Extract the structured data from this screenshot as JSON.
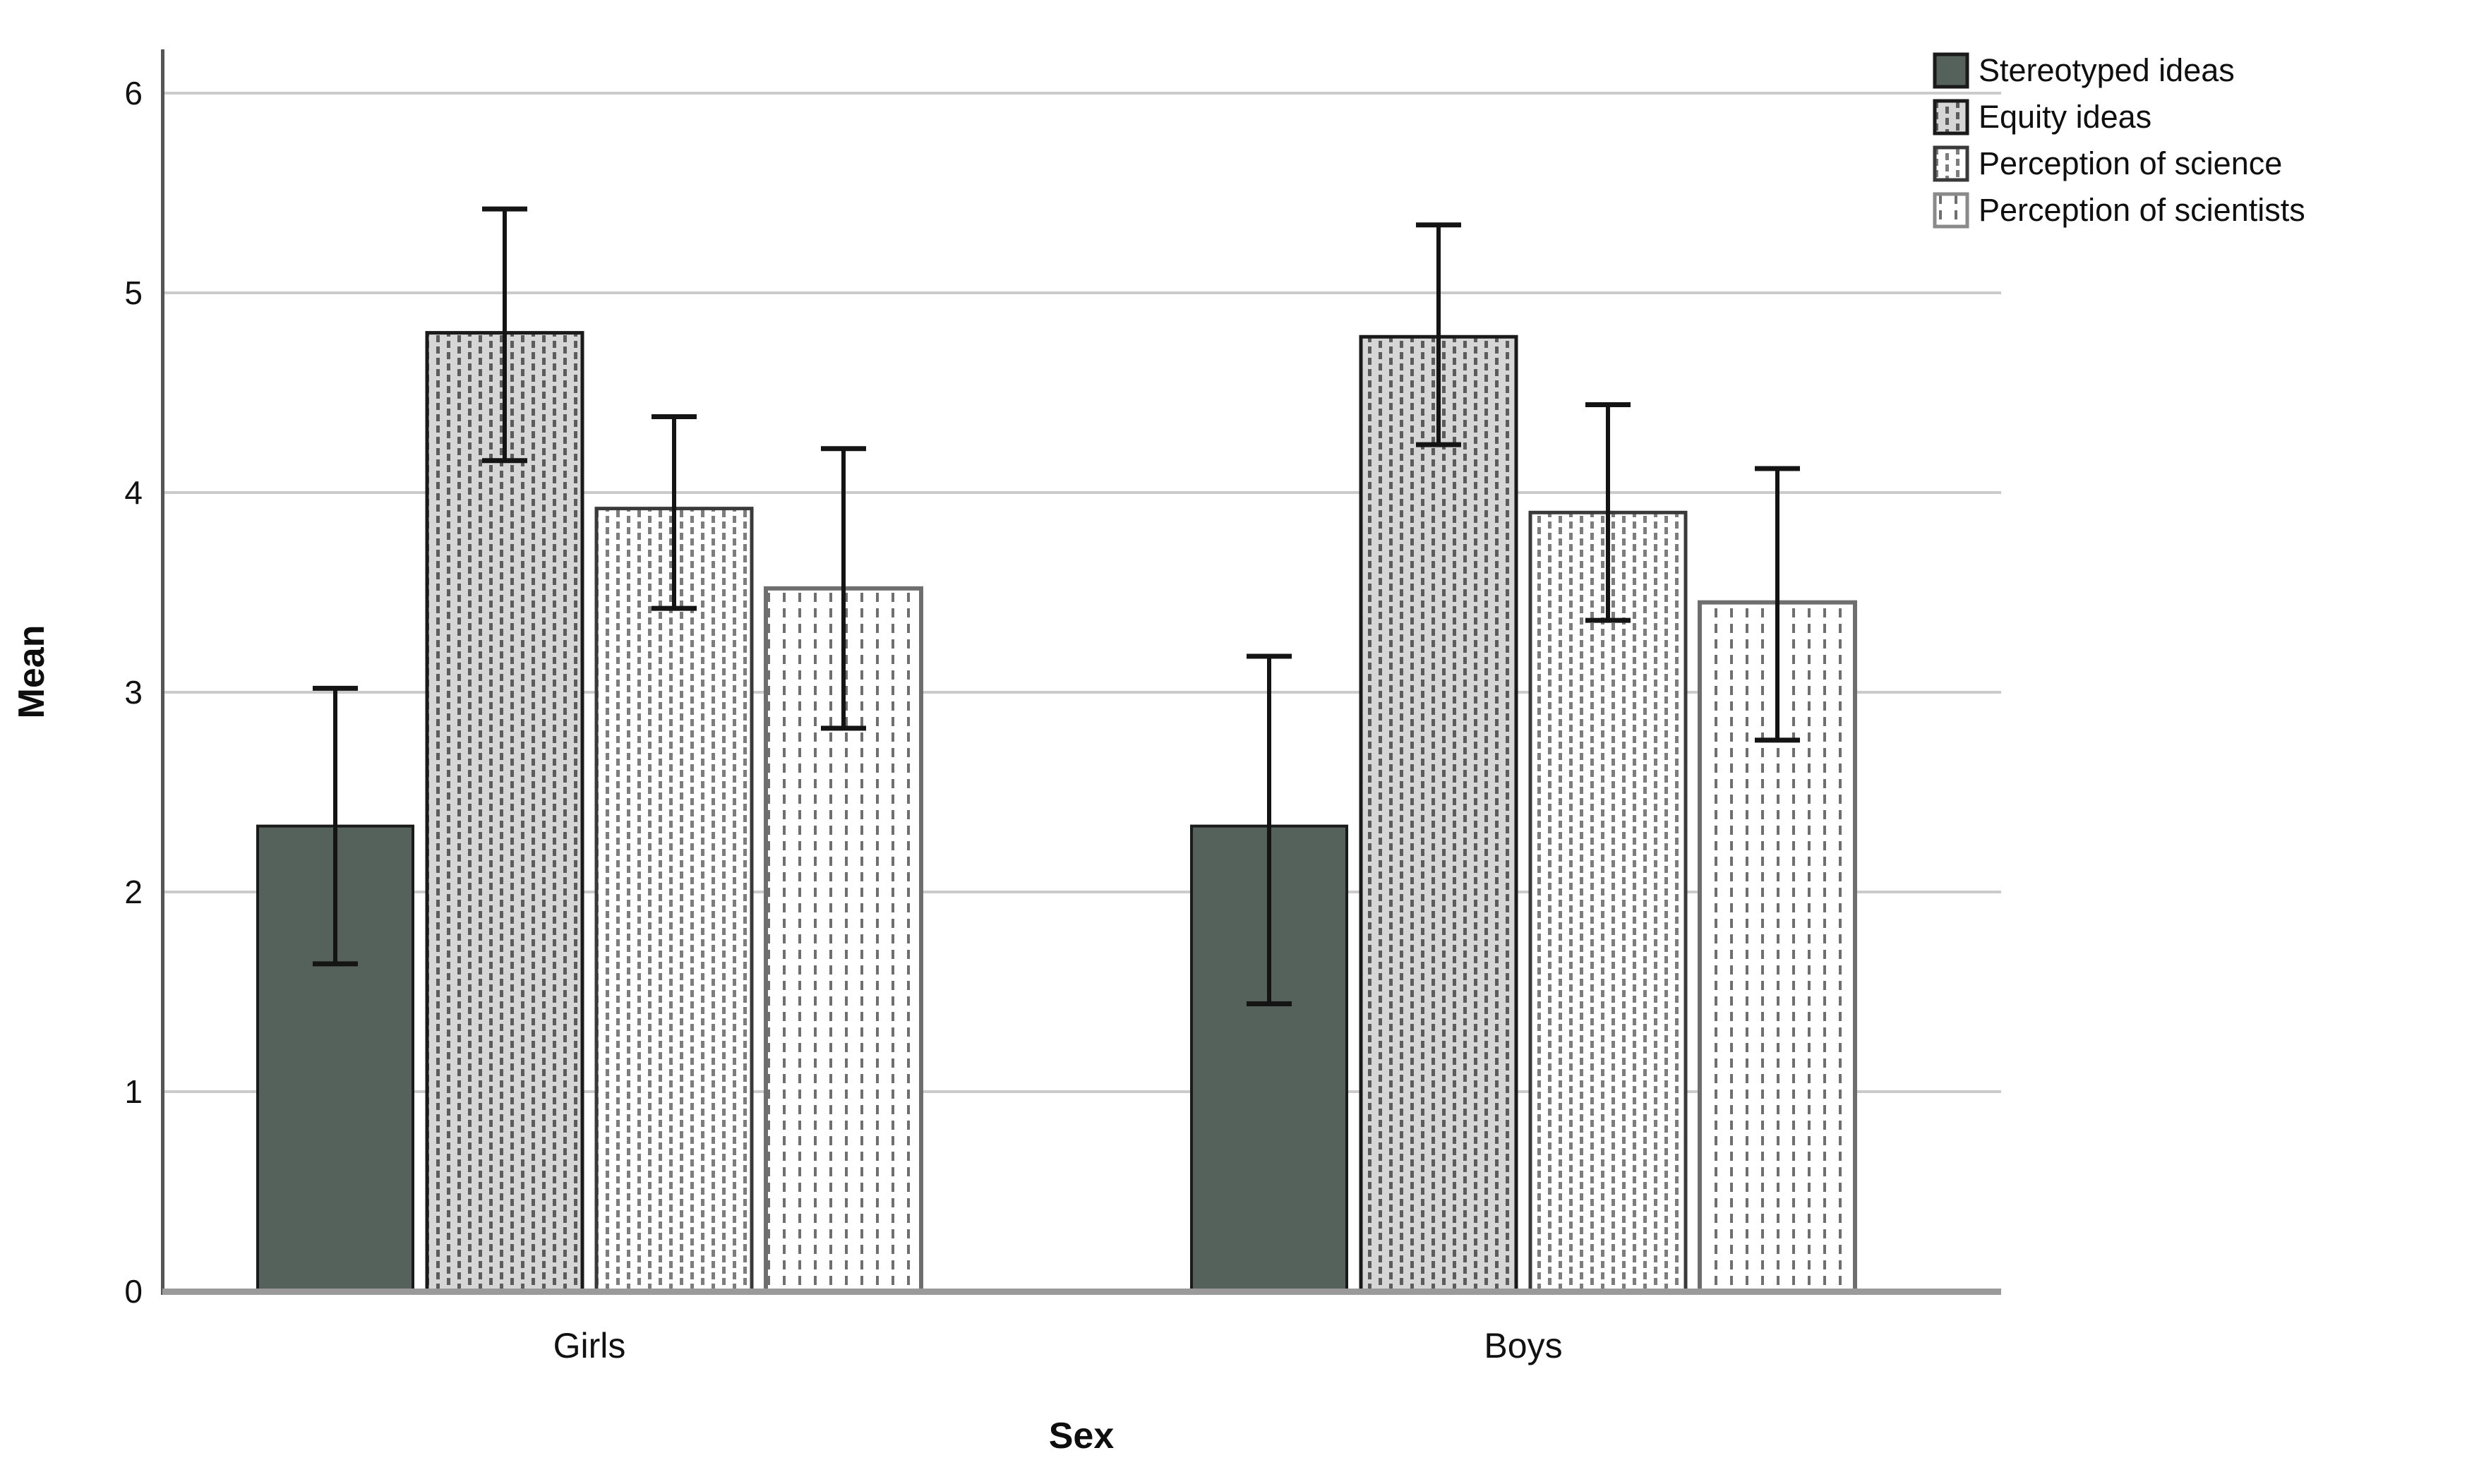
{
  "chart_data": {
    "type": "bar",
    "title": "",
    "xlabel": "Sex",
    "ylabel": "Mean",
    "categories": [
      "Girls",
      "Boys"
    ],
    "yticks": [
      0,
      1,
      2,
      3,
      4,
      5,
      6
    ],
    "ylim": [
      0,
      6.2
    ],
    "grid": true,
    "legend_position": "top-right",
    "error_bars": true,
    "series": [
      {
        "name": "Stereotyped ideas",
        "style": "solid-dark",
        "values": [
          2.33,
          2.33
        ],
        "err_low": [
          1.64,
          1.44
        ],
        "err_high": [
          3.02,
          3.18
        ]
      },
      {
        "name": "Equity ideas",
        "style": "gray-dashes",
        "values": [
          4.8,
          4.78
        ],
        "err_low": [
          4.16,
          4.24
        ],
        "err_high": [
          5.42,
          5.34
        ]
      },
      {
        "name": "Perception of science",
        "style": "white-dashes",
        "values": [
          3.92,
          3.9
        ],
        "err_low": [
          3.42,
          3.36
        ],
        "err_high": [
          4.38,
          4.44
        ]
      },
      {
        "name": "Perception of scientists",
        "style": "white-dashed-lines",
        "values": [
          3.52,
          3.45
        ],
        "err_low": [
          2.82,
          2.76
        ],
        "err_high": [
          4.22,
          4.12
        ]
      }
    ],
    "colors": {
      "bar_solid_fill": "#54625B",
      "bar_dark_border": "#1a1a1a",
      "pattern_gray_bg": "#d6d6d6",
      "pattern_dark_dash": "#5c5c5c",
      "pattern_light_dash": "#7d7d7d",
      "bar_gray_border": "#6e6e6e",
      "gridline": "#cbcbcb",
      "axis_spine": "#555555",
      "baseline": "#9a9a9a",
      "error_bar": "#141414",
      "background": "#ffffff"
    }
  }
}
